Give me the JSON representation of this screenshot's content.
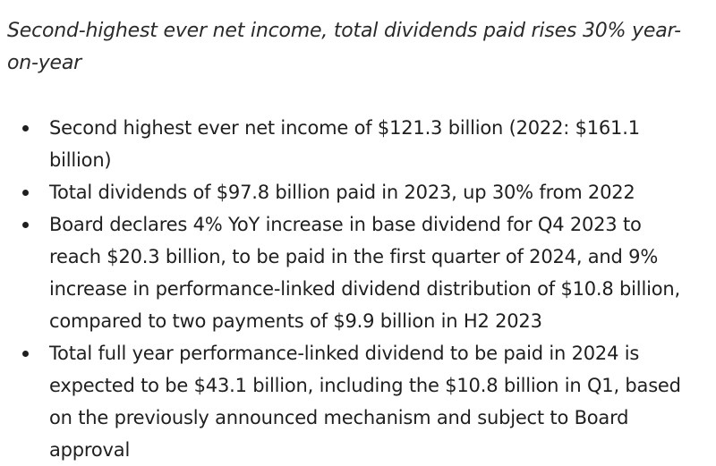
{
  "subtitle": "Second-highest ever net income, total dividends paid rises 30% year-on-year",
  "bullets": [
    "Second highest ever net income of $121.3 billion (2022: $161.1 billion)",
    "Total dividends of $97.8 billion paid in 2023, up 30% from 2022",
    "Board declares 4% YoY increase in base dividend for Q4 2023 to reach $20.3 billion, to be paid in the first quarter of 2024, and 9% increase in performance-linked dividend distribution of $10.8 billion, compared to two payments of $9.9 billion in H2 2023",
    "Total full year performance-linked dividend to be paid in 2024 is expected to be $43.1 billion, including the $10.8 billion in Q1, based on the previously announced mechanism and subject to Board approval"
  ]
}
